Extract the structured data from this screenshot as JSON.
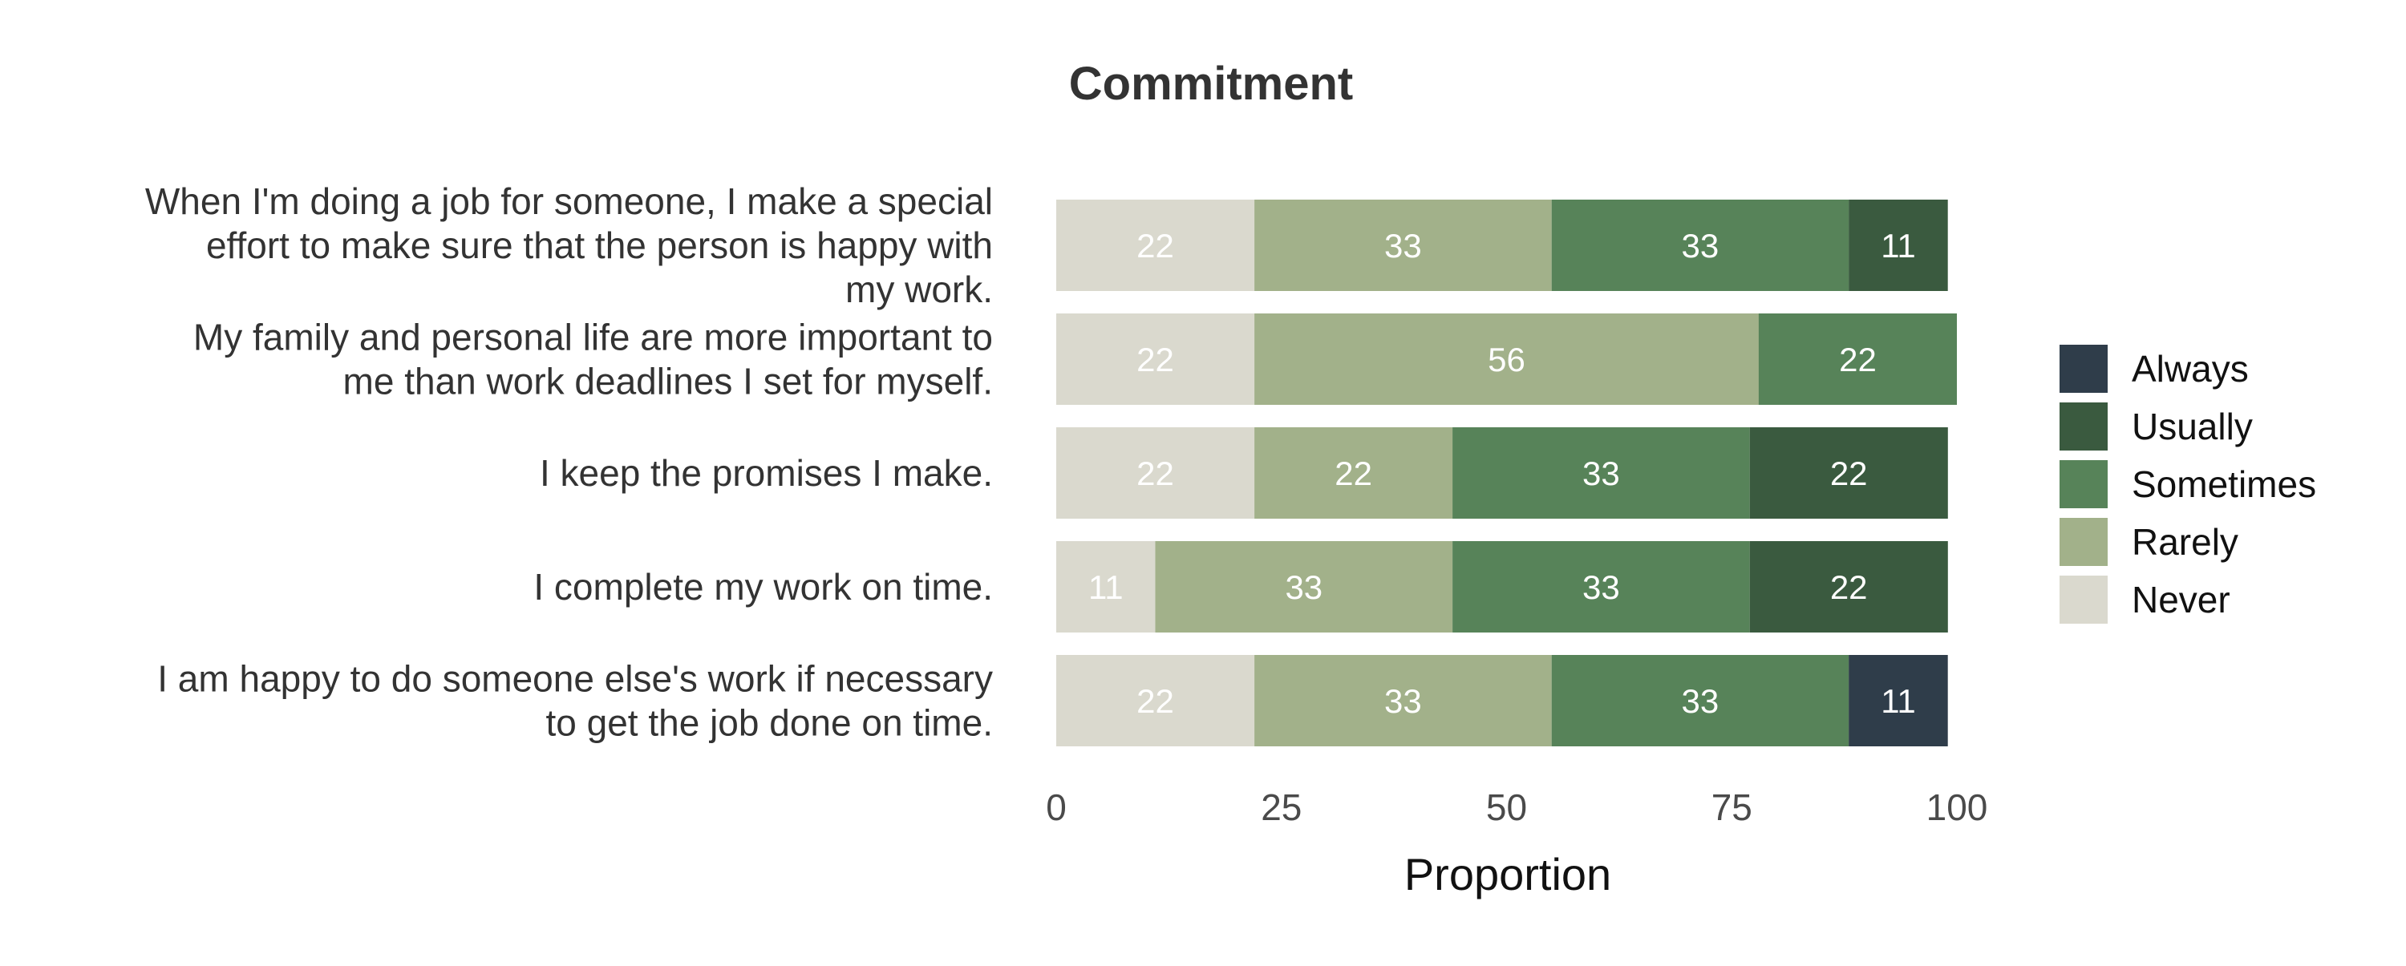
{
  "chart_data": {
    "type": "bar",
    "orientation": "horizontal",
    "stacked": true,
    "title": "Commitment",
    "xlabel": "Proportion",
    "ylabel": "",
    "xlim": [
      0,
      100
    ],
    "xticks": [
      "0",
      "25",
      "50",
      "75",
      "100"
    ],
    "grid": false,
    "legend_position": "right",
    "categories": [
      "When I'm doing a job for someone, I make a special effort to make sure that the person is happy with my work.",
      "My family and personal life are more important to me than work deadlines I set for myself.",
      "I keep the promises I make.",
      "I complete my work on time.",
      "I am happy to do someone else's work if necessary to get the job done on time."
    ],
    "category_lines": [
      [
        "When I'm doing a job for someone, I make a special",
        "effort to make sure that the person is happy with",
        "my work."
      ],
      [
        "My family and personal life are more important to",
        "me than work deadlines I set for myself."
      ],
      [
        "I keep the promises I make."
      ],
      [
        "I complete my work on time."
      ],
      [
        "I am happy to do someone else's work if necessary",
        "to get the job done on time."
      ]
    ],
    "series": [
      {
        "name": "Never",
        "color": "#dad9ce",
        "values": [
          22,
          22,
          22,
          11,
          22
        ]
      },
      {
        "name": "Rarely",
        "color": "#a2b18a",
        "values": [
          33,
          56,
          22,
          33,
          33
        ]
      },
      {
        "name": "Sometimes",
        "color": "#578359",
        "values": [
          33,
          22,
          33,
          33,
          33
        ]
      },
      {
        "name": "Usually",
        "color": "#3a5a3f",
        "values": [
          11,
          0,
          22,
          22,
          0
        ]
      },
      {
        "name": "Always",
        "color": "#2f3d4a",
        "values": [
          0,
          0,
          0,
          0,
          11
        ]
      }
    ],
    "legend_order": [
      "Always",
      "Usually",
      "Sometimes",
      "Rarely",
      "Never"
    ]
  }
}
